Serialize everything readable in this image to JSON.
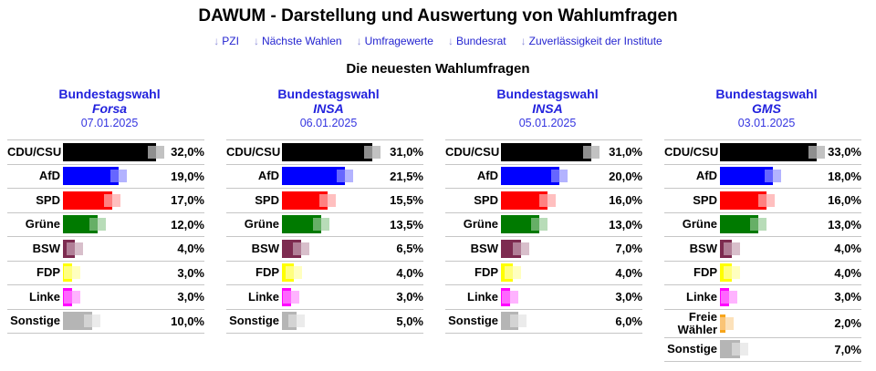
{
  "page": {
    "title": "DAWUM - Darstellung und Auswertung von Wahlumfragen",
    "nav_arrow": "↓",
    "nav": [
      {
        "label": "PZI"
      },
      {
        "label": "Nächste Wahlen"
      },
      {
        "label": "Umfragewerte"
      },
      {
        "label": "Bundesrat"
      },
      {
        "label": "Zuverlässigkeit der Institute"
      }
    ],
    "section_title": "Die neuesten Wahlumfragen"
  },
  "colors": {
    "link_text": "#2424d0",
    "nav_arrow": "#9090da",
    "header_blue": "#2222dd",
    "date_blue": "#3535e0",
    "separator": "#c6c6c6"
  },
  "parties": {
    "CDU/CSU": {
      "color": "#000000",
      "light": "#8f8f8f",
      "lighter": "#c2c2c2"
    },
    "AfD": {
      "color": "#0000ff",
      "light": "#6666ff",
      "lighter": "#b3b3ff"
    },
    "SPD": {
      "color": "#ff0000",
      "light": "#ff8080",
      "lighter": "#ffbfbf"
    },
    "Grüne": {
      "color": "#007a00",
      "light": "#66af66",
      "lighter": "#b8dcb8"
    },
    "BSW": {
      "color": "#7d2b50",
      "light": "#b17f97",
      "lighter": "#d8bfcb"
    },
    "FDP": {
      "color": "#ffff00",
      "light": "#ffff80",
      "lighter": "#ffffbf"
    },
    "Linke": {
      "color": "#ff00ff",
      "light": "#ff66ff",
      "lighter": "#ffb3ff"
    },
    "Freie Wähler": {
      "color": "#f7a51b",
      "light": "#fac476",
      "lighter": "#fce1ba"
    },
    "Sonstige": {
      "color": "#b5b5b5",
      "light": "#d3d3d3",
      "lighter": "#ebebeb"
    }
  },
  "chart_data": [
    {
      "type": "bar",
      "orientation": "horizontal",
      "title": "Bundestagswahl",
      "institute": "Forsa",
      "date": "07.01.2025",
      "unit": "%",
      "xlim": [
        0,
        35
      ],
      "categories": [
        "CDU/CSU",
        "AfD",
        "SPD",
        "Grüne",
        "BSW",
        "FDP",
        "Linke",
        "Sonstige"
      ],
      "values": [
        32.0,
        19.0,
        17.0,
        12.0,
        4.0,
        3.0,
        3.0,
        10.0
      ],
      "labels": [
        "32,0%",
        "19,0%",
        "17,0%",
        "12,0%",
        "4,0%",
        "3,0%",
        "3,0%",
        "10,0%"
      ]
    },
    {
      "type": "bar",
      "orientation": "horizontal",
      "title": "Bundestagswahl",
      "institute": "INSA",
      "date": "06.01.2025",
      "unit": "%",
      "xlim": [
        0,
        35
      ],
      "categories": [
        "CDU/CSU",
        "AfD",
        "SPD",
        "Grüne",
        "BSW",
        "FDP",
        "Linke",
        "Sonstige"
      ],
      "values": [
        31.0,
        21.5,
        15.5,
        13.5,
        6.5,
        4.0,
        3.0,
        5.0
      ],
      "labels": [
        "31,0%",
        "21,5%",
        "15,5%",
        "13,5%",
        "6,5%",
        "4,0%",
        "3,0%",
        "5,0%"
      ]
    },
    {
      "type": "bar",
      "orientation": "horizontal",
      "title": "Bundestagswahl",
      "institute": "INSA",
      "date": "05.01.2025",
      "unit": "%",
      "xlim": [
        0,
        35
      ],
      "categories": [
        "CDU/CSU",
        "AfD",
        "SPD",
        "Grüne",
        "BSW",
        "FDP",
        "Linke",
        "Sonstige"
      ],
      "values": [
        31.0,
        20.0,
        16.0,
        13.0,
        7.0,
        4.0,
        3.0,
        6.0
      ],
      "labels": [
        "31,0%",
        "20,0%",
        "16,0%",
        "13,0%",
        "7,0%",
        "4,0%",
        "3,0%",
        "6,0%"
      ]
    },
    {
      "type": "bar",
      "orientation": "horizontal",
      "title": "Bundestagswahl",
      "institute": "GMS",
      "date": "03.01.2025",
      "unit": "%",
      "xlim": [
        0,
        35
      ],
      "categories": [
        "CDU/CSU",
        "AfD",
        "SPD",
        "Grüne",
        "BSW",
        "FDP",
        "Linke",
        "Freie Wähler",
        "Sonstige"
      ],
      "values": [
        33.0,
        18.0,
        16.0,
        13.0,
        4.0,
        4.0,
        3.0,
        2.0,
        7.0
      ],
      "labels": [
        "33,0%",
        "18,0%",
        "16,0%",
        "13,0%",
        "4,0%",
        "4,0%",
        "3,0%",
        "2,0%",
        "7,0%"
      ]
    }
  ]
}
